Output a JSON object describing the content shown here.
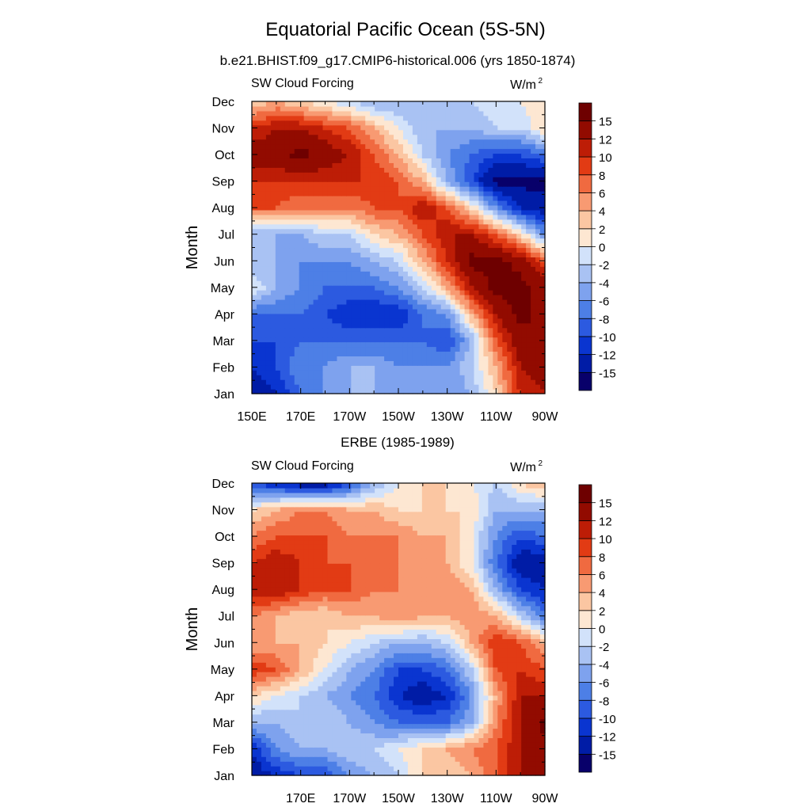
{
  "figure": {
    "title": "Equatorial Pacific Ocean (5S-5N)"
  },
  "color_scale": {
    "labels": [
      "15",
      "12",
      "10",
      "8",
      "6",
      "4",
      "2",
      "0",
      "-2",
      "-4",
      "-6",
      "-8",
      "-10",
      "-12",
      "-15"
    ],
    "levels": [
      -15,
      -12,
      -10,
      -8,
      -6,
      -4,
      -2,
      0,
      2,
      4,
      6,
      8,
      10,
      12,
      15
    ],
    "colors": [
      "#08006a",
      "#001ca6",
      "#0a35d0",
      "#2c5ae0",
      "#4d7fe6",
      "#7ea2ee",
      "#a9c2f3",
      "#d2e2fa",
      "#fde7d2",
      "#fbc6a2",
      "#f89a72",
      "#f06a40",
      "#e23b14",
      "#bd1d06",
      "#920b00",
      "#6e0000"
    ]
  },
  "chart_data": [
    {
      "type": "heatmap",
      "title": "b.e21.BHIST.f09_g17.CMIP6-historical.006 (yrs 1850-1874)",
      "left_label": "SW Cloud Forcing",
      "units": "W/m",
      "units_sup": "2",
      "xlabel": "",
      "ylabel": "Month",
      "x_ticks": [
        "150E",
        "170E",
        "170W",
        "150W",
        "130W",
        "110W",
        "90W"
      ],
      "y_ticks": [
        "Jan",
        "Feb",
        "Mar",
        "Apr",
        "May",
        "Jun",
        "Jul",
        "Aug",
        "Sep",
        "Oct",
        "Nov",
        "Dec"
      ],
      "xlim": [
        "150E",
        "90W"
      ],
      "grid": false,
      "legend": "right",
      "columns": [
        "150E",
        "160E",
        "170E",
        "180",
        "170W",
        "160W",
        "150W",
        "140W",
        "130W",
        "120W",
        "110W",
        "100W",
        "90W"
      ],
      "rows": [
        "Jan",
        "Feb",
        "Mar",
        "Apr",
        "May",
        "Jun",
        "Jul",
        "Aug",
        "Sep",
        "Oct",
        "Nov",
        "Dec"
      ],
      "values": [
        [
          -15,
          -12,
          -8,
          -6,
          -4,
          -4,
          -6,
          -6,
          -6,
          -4,
          2,
          10,
          12
        ],
        [
          -12,
          -10,
          -6,
          -6,
          -4,
          -4,
          -6,
          -6,
          -6,
          -2,
          4,
          12,
          14
        ],
        [
          -10,
          -10,
          -8,
          -8,
          -8,
          -8,
          -8,
          -8,
          -10,
          -4,
          8,
          14,
          14
        ],
        [
          -8,
          -8,
          -8,
          -10,
          -12,
          -12,
          -12,
          -8,
          -6,
          4,
          12,
          16,
          14
        ],
        [
          0,
          -4,
          -6,
          -8,
          -8,
          -8,
          -6,
          -2,
          4,
          12,
          16,
          16,
          14
        ],
        [
          -4,
          -4,
          -6,
          -6,
          -6,
          -4,
          -2,
          4,
          10,
          16,
          16,
          14,
          8
        ],
        [
          -4,
          -4,
          -4,
          -2,
          -2,
          2,
          4,
          8,
          12,
          12,
          8,
          2,
          -6
        ],
        [
          8,
          8,
          6,
          6,
          6,
          8,
          8,
          12,
          8,
          2,
          -6,
          -12,
          -14
        ],
        [
          10,
          10,
          10,
          10,
          10,
          10,
          8,
          4,
          -4,
          -10,
          -16,
          -16,
          -16
        ],
        [
          14,
          14,
          16,
          14,
          12,
          8,
          4,
          -2,
          -6,
          -8,
          -10,
          -10,
          -8
        ],
        [
          10,
          12,
          12,
          10,
          8,
          4,
          0,
          -4,
          -4,
          -4,
          -2,
          -2,
          2
        ],
        [
          2,
          4,
          2,
          0,
          -2,
          -4,
          -4,
          -4,
          -4,
          -2,
          0,
          0,
          2
        ]
      ]
    },
    {
      "type": "heatmap",
      "title": "ERBE (1985-1989)",
      "left_label": "SW Cloud Forcing",
      "units": "W/m",
      "units_sup": "2",
      "xlabel": "",
      "ylabel": "Month",
      "x_ticks": [
        "",
        "170E",
        "170W",
        "150W",
        "130W",
        "110W",
        "90W"
      ],
      "y_ticks": [
        "Jan",
        "Feb",
        "Mar",
        "Apr",
        "May",
        "Jun",
        "Jul",
        "Aug",
        "Sep",
        "Oct",
        "Nov",
        "Dec"
      ],
      "xlim": [
        "150E",
        "90W"
      ],
      "grid": false,
      "legend": "right",
      "columns": [
        "150E",
        "160E",
        "170E",
        "180",
        "170W",
        "160W",
        "150W",
        "140W",
        "130W",
        "120W",
        "110W",
        "100W",
        "90W"
      ],
      "rows": [
        "Jan",
        "Feb",
        "Mar",
        "Apr",
        "May",
        "Jun",
        "Jul",
        "Aug",
        "Sep",
        "Oct",
        "Nov",
        "Dec"
      ],
      "values": [
        [
          -14,
          -12,
          -10,
          -10,
          -6,
          -4,
          -2,
          2,
          2,
          4,
          8,
          12,
          14
        ],
        [
          -12,
          -6,
          -4,
          -4,
          -2,
          -2,
          0,
          2,
          4,
          6,
          8,
          12,
          14
        ],
        [
          -4,
          -4,
          -2,
          -2,
          -4,
          -6,
          -8,
          -8,
          -8,
          -4,
          6,
          12,
          16
        ],
        [
          2,
          0,
          -2,
          -4,
          -6,
          -8,
          -12,
          -14,
          -12,
          -6,
          4,
          12,
          12
        ],
        [
          10,
          8,
          4,
          0,
          -4,
          -6,
          -10,
          -10,
          -8,
          -2,
          8,
          10,
          8
        ],
        [
          4,
          4,
          4,
          2,
          0,
          -2,
          -4,
          -4,
          -2,
          4,
          10,
          8,
          4
        ],
        [
          6,
          4,
          2,
          2,
          4,
          4,
          6,
          4,
          4,
          6,
          4,
          -2,
          -8
        ],
        [
          12,
          12,
          10,
          8,
          8,
          6,
          6,
          6,
          6,
          4,
          -4,
          -10,
          -12
        ],
        [
          10,
          12,
          10,
          8,
          8,
          6,
          6,
          4,
          4,
          0,
          -8,
          -14,
          -14
        ],
        [
          6,
          8,
          8,
          8,
          6,
          6,
          6,
          4,
          4,
          0,
          -6,
          -10,
          -8
        ],
        [
          2,
          4,
          6,
          6,
          4,
          4,
          2,
          2,
          2,
          2,
          -4,
          -4,
          -4
        ],
        [
          -10,
          -12,
          -14,
          -14,
          -10,
          -4,
          0,
          2,
          2,
          0,
          -2,
          2,
          4
        ]
      ]
    }
  ]
}
